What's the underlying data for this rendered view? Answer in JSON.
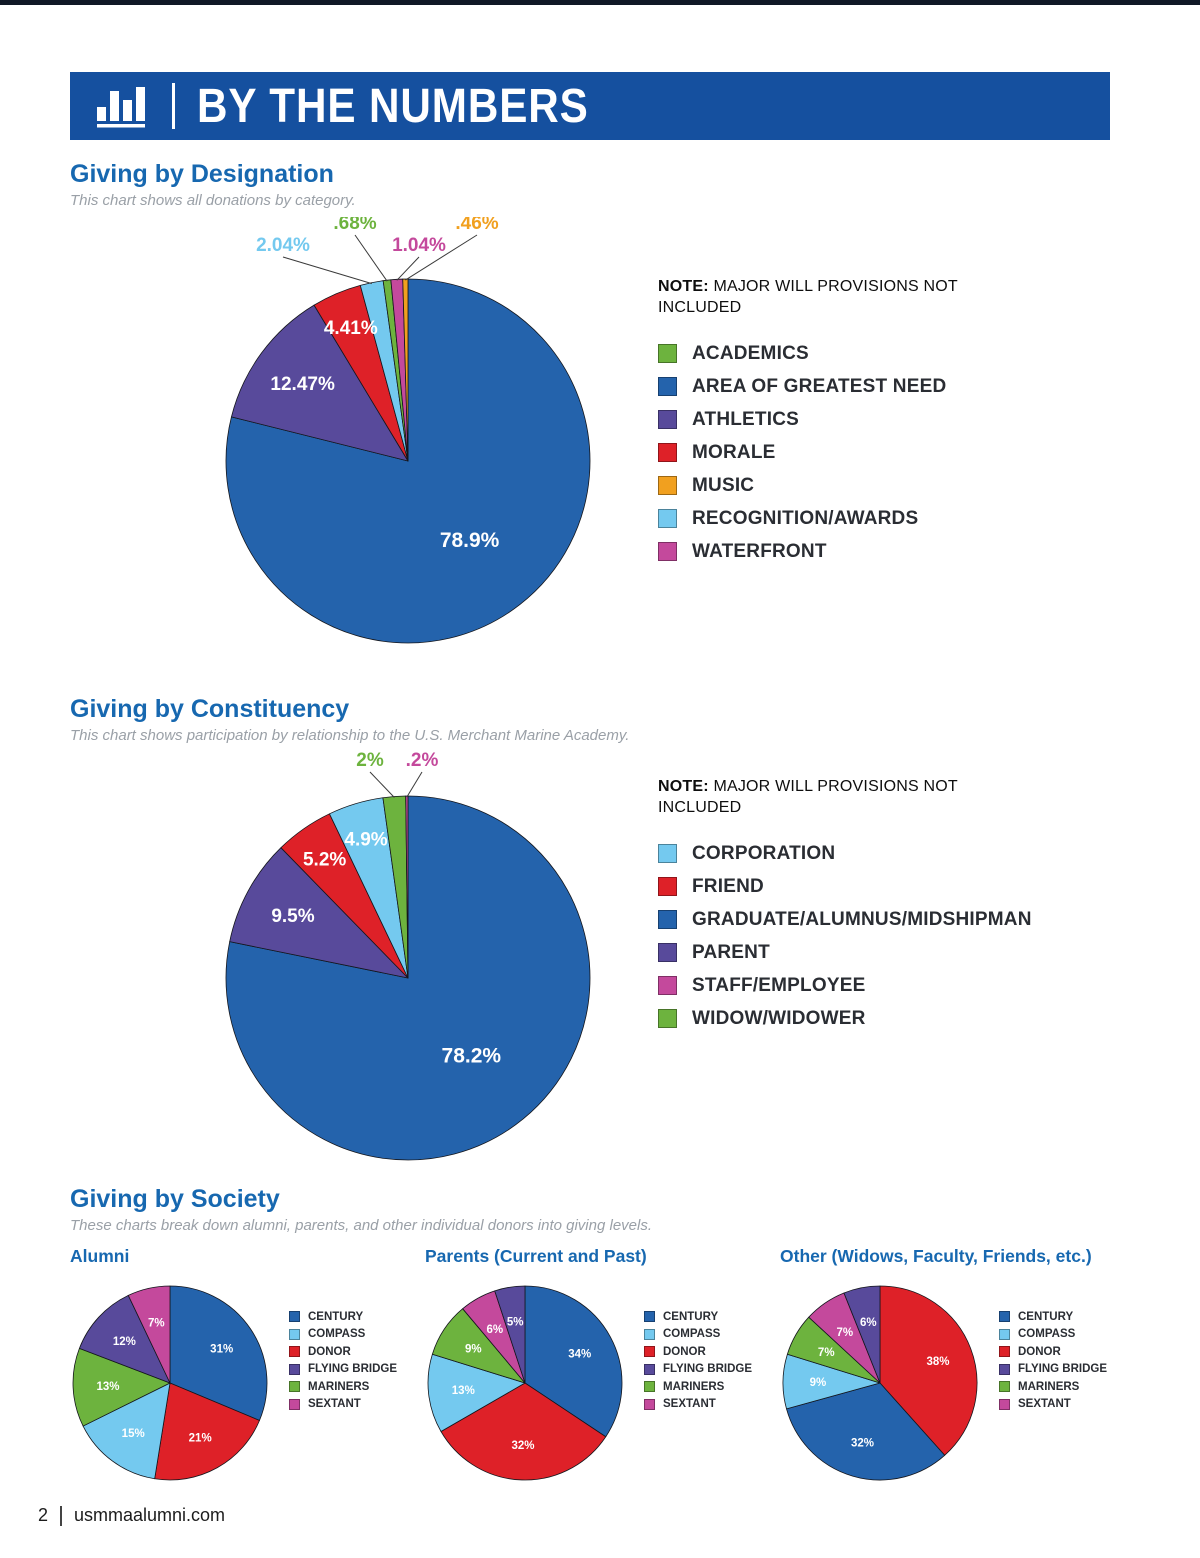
{
  "header": {
    "title": "BY THE NUMBERS"
  },
  "footer": {
    "page_number": "2",
    "site": "usmmaalumni.com"
  },
  "colors": {
    "blue": "#2463ac",
    "purple": "#584a9b",
    "red": "#de2128",
    "light_blue": "#74c9ef",
    "green": "#6db33e",
    "magenta": "#c4499c",
    "orange": "#f1a01f",
    "banner_blue": "#15509f",
    "title_blue": "#1768b0"
  },
  "society": {
    "title": "Giving by Society",
    "subtitle": "These charts break down alumni, parents, and other individual donors into giving levels."
  },
  "chart_data": [
    {
      "type": "pie",
      "title": "Giving by Designation",
      "subtitle": "This chart shows all donations by category.",
      "note_label": "NOTE:",
      "note_text": "MAJOR WILL PROVISIONS NOT INCLUDED",
      "slices": [
        {
          "label": "AREA OF GREATEST NEED",
          "value": 78.9,
          "display": "78.9%",
          "color": "blue"
        },
        {
          "label": "ATHLETICS",
          "value": 12.47,
          "display": "12.47%",
          "color": "purple"
        },
        {
          "label": "MORALE",
          "value": 4.41,
          "display": "4.41%",
          "color": "red"
        },
        {
          "label": "RECOGNITION/AWARDS",
          "value": 2.04,
          "display": "2.04%",
          "color": "light_blue"
        },
        {
          "label": "ACADEMICS",
          "value": 0.68,
          "display": ".68%",
          "color": "green"
        },
        {
          "label": "WATERFRONT",
          "value": 1.04,
          "display": "1.04%",
          "color": "magenta"
        },
        {
          "label": "MUSIC",
          "value": 0.46,
          "display": ".46%",
          "color": "orange"
        }
      ],
      "legend": [
        {
          "label": "ACADEMICS",
          "color": "green"
        },
        {
          "label": "AREA OF GREATEST NEED",
          "color": "blue"
        },
        {
          "label": "ATHLETICS",
          "color": "purple"
        },
        {
          "label": "MORALE",
          "color": "red"
        },
        {
          "label": "MUSIC",
          "color": "orange"
        },
        {
          "label": "RECOGNITION/AWARDS",
          "color": "light_blue"
        },
        {
          "label": "WATERFRONT",
          "color": "magenta"
        }
      ]
    },
    {
      "type": "pie",
      "title": "Giving by Constituency",
      "subtitle": "This chart shows participation by relationship to the U.S. Merchant Marine Academy.",
      "note_label": "NOTE:",
      "note_text": "MAJOR WILL PROVISIONS NOT INCLUDED",
      "slices": [
        {
          "label": "GRADUATE/ALUMNUS/MIDSHIPMAN",
          "value": 78.2,
          "display": "78.2%",
          "color": "blue"
        },
        {
          "label": "PARENT",
          "value": 9.5,
          "display": "9.5%",
          "color": "purple"
        },
        {
          "label": "FRIEND",
          "value": 5.2,
          "display": "5.2%",
          "color": "red"
        },
        {
          "label": "CORPORATION",
          "value": 4.9,
          "display": "4.9%",
          "color": "light_blue"
        },
        {
          "label": "WIDOW/WIDOWER",
          "value": 2,
          "display": "2%",
          "color": "green"
        },
        {
          "label": "STAFF/EMPLOYEE",
          "value": 0.2,
          "display": ".2%",
          "color": "magenta"
        }
      ],
      "legend": [
        {
          "label": "CORPORATION",
          "color": "light_blue"
        },
        {
          "label": "FRIEND",
          "color": "red"
        },
        {
          "label": "GRADUATE/ALUMNUS/MIDSHIPMAN",
          "color": "blue"
        },
        {
          "label": "PARENT",
          "color": "purple"
        },
        {
          "label": "STAFF/EMPLOYEE",
          "color": "magenta"
        },
        {
          "label": "WIDOW/WIDOWER",
          "color": "green"
        }
      ]
    },
    {
      "type": "pie",
      "title": "Alumni",
      "slices": [
        {
          "label": "CENTURY",
          "value": 31,
          "display": "31%",
          "color": "blue"
        },
        {
          "label": "DONOR",
          "value": 21,
          "display": "21%",
          "color": "red"
        },
        {
          "label": "COMPASS",
          "value": 15,
          "display": "15%",
          "color": "light_blue"
        },
        {
          "label": "MARINERS",
          "value": 13,
          "display": "13%",
          "color": "green"
        },
        {
          "label": "FLYING BRIDGE",
          "value": 12,
          "display": "12%",
          "color": "purple"
        },
        {
          "label": "SEXTANT",
          "value": 7,
          "display": "7%",
          "color": "magenta"
        }
      ],
      "legend": [
        {
          "label": "CENTURY",
          "color": "blue"
        },
        {
          "label": "COMPASS",
          "color": "light_blue"
        },
        {
          "label": "DONOR",
          "color": "red"
        },
        {
          "label": "FLYING BRIDGE",
          "color": "purple"
        },
        {
          "label": "MARINERS",
          "color": "green"
        },
        {
          "label": "SEXTANT",
          "color": "magenta"
        }
      ]
    },
    {
      "type": "pie",
      "title": "Parents (Current and Past)",
      "slices": [
        {
          "label": "CENTURY",
          "value": 34,
          "display": "34%",
          "color": "blue"
        },
        {
          "label": "DONOR",
          "value": 32,
          "display": "32%",
          "color": "red"
        },
        {
          "label": "COMPASS",
          "value": 13,
          "display": "13%",
          "color": "light_blue"
        },
        {
          "label": "MARINERS",
          "value": 9,
          "display": "9%",
          "color": "green"
        },
        {
          "label": "SEXTANT",
          "value": 6,
          "display": "6%",
          "color": "magenta"
        },
        {
          "label": "FLYING BRIDGE",
          "value": 5,
          "display": "5%",
          "color": "purple"
        }
      ],
      "legend": [
        {
          "label": "CENTURY",
          "color": "blue"
        },
        {
          "label": "COMPASS",
          "color": "light_blue"
        },
        {
          "label": "DONOR",
          "color": "red"
        },
        {
          "label": "FLYING BRIDGE",
          "color": "purple"
        },
        {
          "label": "MARINERS",
          "color": "green"
        },
        {
          "label": "SEXTANT",
          "color": "magenta"
        }
      ]
    },
    {
      "type": "pie",
      "title": "Other (Widows, Faculty, Friends, etc.)",
      "slices": [
        {
          "label": "DONOR",
          "value": 38,
          "display": "38%",
          "color": "red"
        },
        {
          "label": "CENTURY",
          "value": 32,
          "display": "32%",
          "color": "blue"
        },
        {
          "label": "COMPASS",
          "value": 9,
          "display": "9%",
          "color": "light_blue"
        },
        {
          "label": "MARINERS",
          "value": 7,
          "display": "7%",
          "color": "green"
        },
        {
          "label": "SEXTANT",
          "value": 7,
          "display": "7%",
          "color": "magenta"
        },
        {
          "label": "FLYING BRIDGE",
          "value": 6,
          "display": "6%",
          "color": "purple"
        }
      ],
      "legend": [
        {
          "label": "CENTURY",
          "color": "blue"
        },
        {
          "label": "COMPASS",
          "color": "light_blue"
        },
        {
          "label": "DONOR",
          "color": "red"
        },
        {
          "label": "FLYING BRIDGE",
          "color": "purple"
        },
        {
          "label": "MARINERS",
          "color": "green"
        },
        {
          "label": "SEXTANT",
          "color": "magenta"
        }
      ]
    }
  ]
}
